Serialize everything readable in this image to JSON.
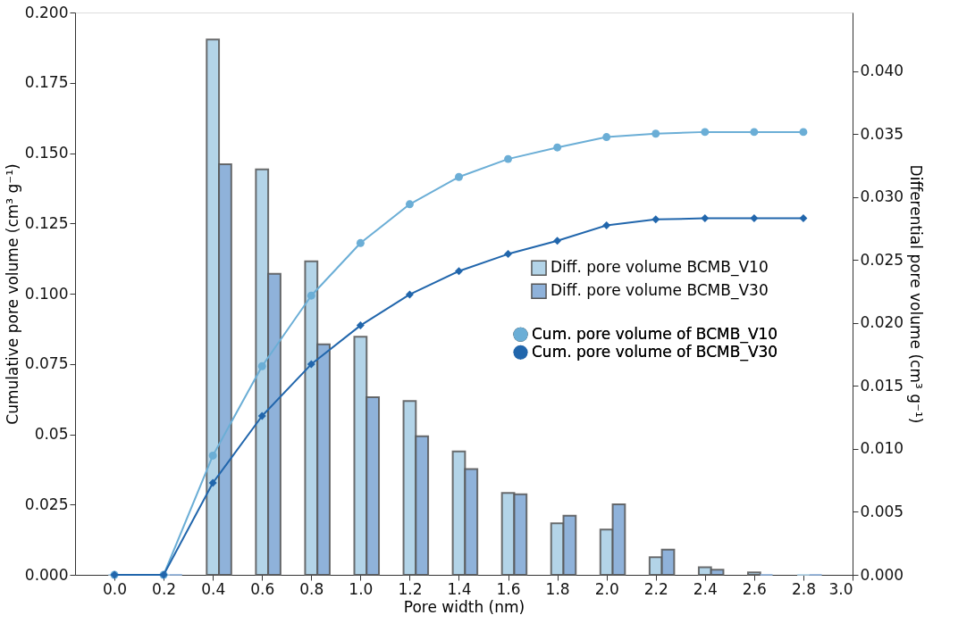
{
  "chart_data": {
    "type": "bar",
    "xlabel": "Pore width (nm)",
    "ylabel": "Cumulative pore volume (cm³ g⁻¹)",
    "y2label": "Differential pore volume (cm³ g⁻¹)",
    "x": [
      0.0,
      0.2,
      0.4,
      0.6,
      0.8,
      1.0,
      1.2,
      1.4,
      1.6,
      1.8,
      2.0,
      2.2,
      2.4,
      2.6,
      2.8
    ],
    "xlim": [
      -0.16,
      3.0
    ],
    "xticks": [
      {
        "value": 0,
        "label": "0.0"
      },
      {
        "value": 0.2,
        "label": "0.2"
      },
      {
        "value": 0.4,
        "label": "0.4"
      },
      {
        "value": 0.6,
        "label": "0.6"
      },
      {
        "value": 0.8,
        "label": "0.8"
      },
      {
        "value": 1,
        "label": "1.0"
      },
      {
        "value": 1.2,
        "label": "1.2"
      },
      {
        "value": 1.4,
        "label": "1.4"
      },
      {
        "value": 1.6,
        "label": "1.6"
      },
      {
        "value": 1.8,
        "label": "1.8"
      },
      {
        "value": 2,
        "label": "2.0"
      },
      {
        "value": 2.2,
        "label": "2.2"
      },
      {
        "value": 2.4,
        "label": "2.4"
      },
      {
        "value": 2.6,
        "label": "2.6"
      },
      {
        "value": 2.8,
        "label": "2.8"
      },
      {
        "value": 3,
        "label": "3.0"
      }
    ],
    "ylim": [
      0,
      0.2
    ],
    "yticks": [
      {
        "value": 0,
        "label": "0.000"
      },
      0.025,
      0.05,
      0.075,
      {
        "value": 0.1,
        "label": "0.100"
      },
      0.125,
      {
        "value": 0.15,
        "label": "0.150"
      },
      0.175,
      {
        "value": 0.2,
        "label": "0.200"
      }
    ],
    "y2lim": [
      0,
      0.04465
    ],
    "y2ticks": [
      {
        "value": 0,
        "label": "0.000"
      },
      0.005,
      {
        "value": 0.01,
        "label": "0.010"
      },
      0.015,
      {
        "value": 0.02,
        "label": "0.020"
      },
      0.025,
      {
        "value": 0.03,
        "label": "0.030"
      },
      0.035,
      {
        "value": 0.04,
        "label": "0.040"
      }
    ],
    "legend": "right",
    "grid": false,
    "series": [
      {
        "name": "Diff. pore volume BCMB_V10",
        "type": "bar",
        "axis": "y2",
        "color": "#b3d4e8",
        "values": [
          0,
          0,
          0.0425,
          0.0322,
          0.0249,
          0.0189,
          0.0138,
          0.0098,
          0.0065,
          0.0041,
          0.0036,
          0.0014,
          0.0006,
          0.0002,
          0
        ]
      },
      {
        "name": "Diff. pore volume BCMB_V30",
        "type": "bar",
        "axis": "y2",
        "color": "#8fb2da",
        "values": [
          0,
          0,
          0.0326,
          0.0239,
          0.0183,
          0.0141,
          0.011,
          0.0084,
          0.0064,
          0.0047,
          0.0056,
          0.002,
          0.0004,
          0,
          0
        ]
      },
      {
        "name": "Cum. pore volume of BCMB_V10",
        "type": "line",
        "marker": "circle",
        "color": "#6baed6",
        "values": [
          0,
          0,
          0.0424,
          0.0742,
          0.0993,
          0.118,
          0.1318,
          0.1415,
          0.1479,
          0.152,
          0.1557,
          0.1569,
          0.1575,
          0.1575,
          0.1575
        ]
      },
      {
        "name": "Cum. pore volume of BCMB_V30",
        "type": "line",
        "marker": "diamond",
        "color": "#2166ac",
        "values": [
          0,
          0,
          0.0327,
          0.0565,
          0.0749,
          0.0887,
          0.0997,
          0.108,
          0.1141,
          0.1188,
          0.1243,
          0.1264,
          0.1268,
          0.1268,
          0.1268
        ]
      }
    ]
  }
}
